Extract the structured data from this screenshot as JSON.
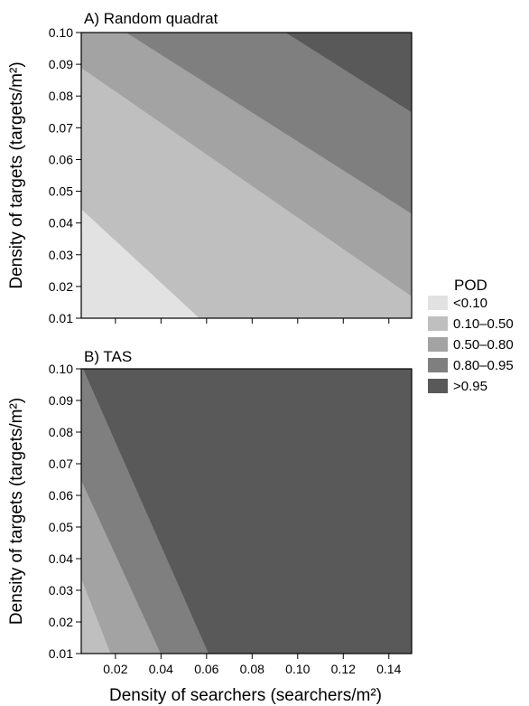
{
  "chart_data": [
    {
      "type": "contour",
      "title": "A) Random quadrat",
      "xlabel": "",
      "ylabel": "Density of targets (targets/m²)",
      "xlim": [
        0.005,
        0.15
      ],
      "ylim": [
        0.01,
        0.1
      ],
      "x_ticks": [
        "0.02",
        "0.04",
        "0.06",
        "0.08",
        "0.10",
        "0.12",
        "0.14"
      ],
      "x_tick_values": [
        0.02,
        0.04,
        0.06,
        0.08,
        0.1,
        0.12,
        0.14
      ],
      "x_ticks_labeled": false,
      "y_ticks": [
        "0.01",
        "0.02",
        "0.03",
        "0.04",
        "0.05",
        "0.06",
        "0.07",
        "0.08",
        "0.09",
        "0.10"
      ],
      "y_tick_values": [
        0.01,
        0.02,
        0.03,
        0.04,
        0.05,
        0.06,
        0.07,
        0.08,
        0.09,
        0.1
      ],
      "regions": [
        {
          "level": "<0.10",
          "color": "#e2e2e2",
          "polygon": [
            [
              0.005,
              0.01
            ],
            [
              0.005,
              0.0445
            ],
            [
              0.057,
              0.01
            ]
          ]
        },
        {
          "level": "0.10–0.50",
          "color": "#bfbfbf",
          "polygon": [
            [
              0.057,
              0.01
            ],
            [
              0.005,
              0.0445
            ],
            [
              0.005,
              0.089
            ],
            [
              0.15,
              0.017
            ],
            [
              0.15,
              0.01
            ]
          ]
        },
        {
          "level": "0.50–0.80",
          "color": "#a3a3a3",
          "polygon": [
            [
              0.005,
              0.089
            ],
            [
              0.005,
              0.1
            ],
            [
              0.025,
              0.1
            ],
            [
              0.15,
              0.043
            ],
            [
              0.15,
              0.017
            ]
          ]
        },
        {
          "level": "0.80–0.95",
          "color": "#7f7f7f",
          "polygon": [
            [
              0.025,
              0.1
            ],
            [
              0.095,
              0.1
            ],
            [
              0.15,
              0.075
            ],
            [
              0.15,
              0.043
            ]
          ]
        },
        {
          "level": ">0.95",
          "color": "#595959",
          "polygon": [
            [
              0.095,
              0.1
            ],
            [
              0.15,
              0.1
            ],
            [
              0.15,
              0.075
            ]
          ]
        }
      ]
    },
    {
      "type": "contour",
      "title": "B) TAS",
      "xlabel": "Density of searchers (searchers/m²)",
      "ylabel": "Density of targets (targets/m²)",
      "xlim": [
        0.005,
        0.15
      ],
      "ylim": [
        0.01,
        0.1
      ],
      "x_ticks": [
        "0.02",
        "0.04",
        "0.06",
        "0.08",
        "0.10",
        "0.12",
        "0.14"
      ],
      "x_tick_values": [
        0.02,
        0.04,
        0.06,
        0.08,
        0.1,
        0.12,
        0.14
      ],
      "x_ticks_labeled": true,
      "y_ticks": [
        "0.01",
        "0.02",
        "0.03",
        "0.04",
        "0.05",
        "0.06",
        "0.07",
        "0.08",
        "0.09",
        "0.10"
      ],
      "y_tick_values": [
        0.01,
        0.02,
        0.03,
        0.04,
        0.05,
        0.06,
        0.07,
        0.08,
        0.09,
        0.1
      ],
      "regions": [
        {
          "level": "0.10–0.50",
          "color": "#bfbfbf",
          "polygon": [
            [
              0.005,
              0.01
            ],
            [
              0.005,
              0.034
            ],
            [
              0.018,
              0.01
            ]
          ]
        },
        {
          "level": "0.50–0.80",
          "color": "#a3a3a3",
          "polygon": [
            [
              0.018,
              0.01
            ],
            [
              0.005,
              0.034
            ],
            [
              0.005,
              0.065
            ],
            [
              0.04,
              0.01
            ]
          ]
        },
        {
          "level": "0.80–0.95",
          "color": "#7f7f7f",
          "polygon": [
            [
              0.04,
              0.01
            ],
            [
              0.005,
              0.065
            ],
            [
              0.005,
              0.1
            ],
            [
              0.006,
              0.1
            ],
            [
              0.061,
              0.01
            ]
          ]
        },
        {
          "level": ">0.95",
          "color": "#595959",
          "polygon": [
            [
              0.061,
              0.01
            ],
            [
              0.006,
              0.1
            ],
            [
              0.15,
              0.1
            ],
            [
              0.15,
              0.01
            ]
          ]
        }
      ]
    }
  ],
  "legend": {
    "title": "POD",
    "items": [
      {
        "label": "<0.10",
        "color": "#e2e2e2"
      },
      {
        "label": "0.10–0.50",
        "color": "#bfbfbf"
      },
      {
        "label": "0.50–0.80",
        "color": "#a3a3a3"
      },
      {
        "label": "0.80–0.95",
        "color": "#7f7f7f"
      },
      {
        "label": ">0.95",
        "color": "#595959"
      }
    ]
  }
}
